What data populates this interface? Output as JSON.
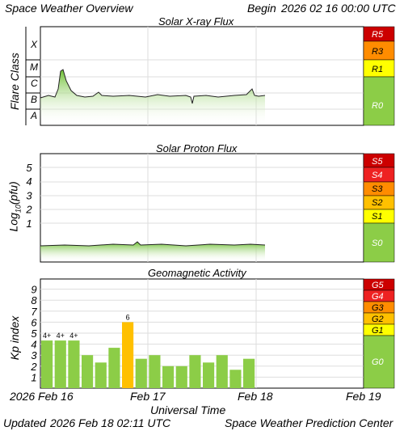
{
  "header": {
    "left": "Space Weather Overview",
    "begin_label": "Begin",
    "begin_date": "2026 02 16 00:00 UTC"
  },
  "footer": {
    "updated_label": "Updated",
    "updated_time": "2026 Feb 18 02:11 UTC",
    "center": "Space Weather Prediction Center"
  },
  "x_axis": {
    "title": "Universal Time",
    "ticks": [
      "2026 Feb 16",
      "Feb 17",
      "Feb 18",
      "Feb 19"
    ]
  },
  "colors": {
    "extreme": "#cc0000",
    "severe": "#ee2222",
    "strong": "#ff8c00",
    "moderate": "#ffc000",
    "minor": "#ffff00",
    "quiet": "#8ccd47",
    "kp_bar": "#8ccd47",
    "kp_storm": "#ffc000"
  },
  "chart_data": [
    {
      "type": "line",
      "title": "Solar X-ray Flux",
      "ylabel": "Flare Class",
      "y_ticks": [
        "X",
        "M",
        "C",
        "B",
        "A"
      ],
      "xlim": [
        0,
        3
      ],
      "x_unit": "days since 2026 Feb 16 00:00 UTC",
      "x": [
        0,
        0.1,
        0.15,
        0.18,
        0.22,
        0.3,
        0.4,
        0.55,
        0.8,
        1.0,
        1.2,
        1.4,
        1.45,
        1.5,
        1.8,
        2.0,
        2.05,
        2.1
      ],
      "y": [
        "B5",
        "B6",
        "M1",
        "C5",
        "C1",
        "B9",
        "B8",
        "B9",
        "B8",
        "B9",
        "B8",
        "B8",
        "B4",
        "B8",
        "B9",
        "C1",
        "B8",
        "B8"
      ],
      "scale_labels": [
        "R5",
        "R3",
        "R1",
        "R0"
      ]
    },
    {
      "type": "line",
      "title": "Solar Proton Flux",
      "ylabel": "Log10(pfu)",
      "ylim": [
        0,
        5
      ],
      "y_ticks": [
        "1",
        "2",
        "3",
        "4",
        "5"
      ],
      "x": [
        0,
        0.5,
        0.8,
        1.0,
        1.5,
        2.0,
        2.1
      ],
      "values": [
        -0.7,
        -0.7,
        -0.6,
        -0.7,
        -0.7,
        -0.7,
        -0.7
      ],
      "scale_labels": [
        "S5",
        "S4",
        "S3",
        "S2",
        "S1",
        "S0"
      ]
    },
    {
      "type": "bar",
      "title": "Geomagnetic Activity",
      "ylabel": "Kp index",
      "ylim": [
        0,
        9
      ],
      "y_ticks": [
        "1",
        "2",
        "3",
        "4",
        "5",
        "6",
        "7",
        "8",
        "9"
      ],
      "values": [
        4.33,
        4.33,
        4.33,
        3,
        2.33,
        3.67,
        6,
        2.67,
        3,
        2,
        2,
        3,
        2.33,
        3,
        1.67,
        2.67
      ],
      "bar_labels": [
        "4+",
        "4+",
        "4+",
        "",
        "",
        "",
        "6",
        "",
        "",
        "",
        "",
        "",
        "",
        "",
        "",
        ""
      ],
      "scale_labels": [
        "G5",
        "G4",
        "G3",
        "G2",
        "G1",
        "G0"
      ]
    }
  ]
}
